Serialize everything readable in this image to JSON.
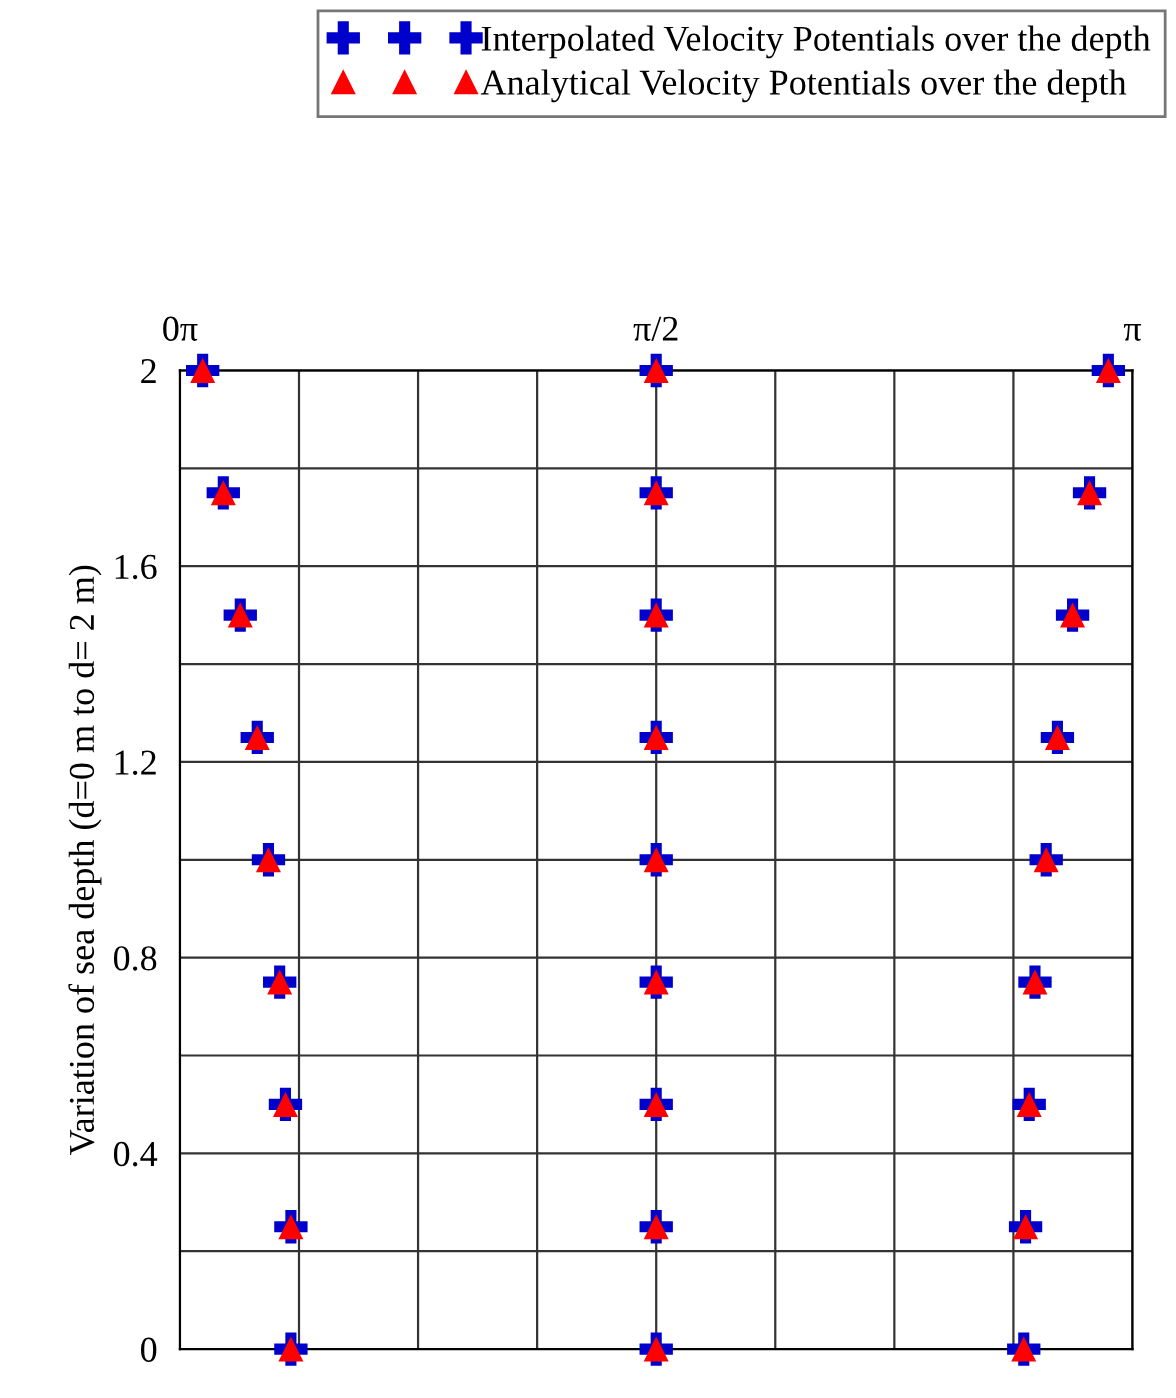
{
  "chart_data": {
    "type": "scatter",
    "ylabel": "Variation of sea depth (d=0 m to d= 2 m)",
    "xlim": [
      0,
      3.1416
    ],
    "xticks": [
      {
        "value": 0,
        "label": "0π"
      },
      {
        "value": 0.3927,
        "label": null
      },
      {
        "value": 0.7854,
        "label": null
      },
      {
        "value": 1.1781,
        "label": null
      },
      {
        "value": 1.5708,
        "label": "π/2"
      },
      {
        "value": 1.9635,
        "label": null
      },
      {
        "value": 2.3562,
        "label": null
      },
      {
        "value": 2.7489,
        "label": null
      },
      {
        "value": 3.1416,
        "label": "π"
      }
    ],
    "ylim": [
      0,
      2
    ],
    "yticks": [
      0,
      {
        "value": 0.2,
        "label": null
      },
      0.4,
      {
        "value": 0.6,
        "label": null
      },
      0.8,
      {
        "value": 1.0,
        "label": null
      },
      1.2,
      {
        "value": 1.4,
        "label": null
      },
      1.6,
      {
        "value": 1.8,
        "label": null
      },
      2
    ],
    "grid": true,
    "legend": "top right",
    "series": [
      {
        "name": "Interpolated Velocity Potentials over the depth",
        "color": "#0000cc",
        "marker": "cross",
        "x": [
          0.075,
          0.143,
          0.199,
          0.255,
          0.292,
          0.329,
          0.348,
          0.366,
          0.366,
          1.5708,
          1.5708,
          1.5708,
          1.5708,
          1.5708,
          1.5708,
          1.5708,
          1.5708,
          1.5708,
          3.062,
          3.0,
          2.944,
          2.894,
          2.857,
          2.82,
          2.801,
          2.789,
          2.783
        ],
        "values": [
          2,
          1.75,
          1.5,
          1.25,
          1.0,
          0.75,
          0.5,
          0.25,
          0,
          2,
          1.75,
          1.5,
          1.25,
          1.0,
          0.75,
          0.5,
          0.25,
          0,
          2,
          1.75,
          1.5,
          1.25,
          1.0,
          0.75,
          0.5,
          0.25,
          0
        ]
      },
      {
        "name": "Analytical Velocity Potentials over the depth",
        "color": "#ff0000",
        "marker": "triangle",
        "x": [
          0.075,
          0.143,
          0.199,
          0.255,
          0.292,
          0.329,
          0.348,
          0.366,
          0.366,
          1.5708,
          1.5708,
          1.5708,
          1.5708,
          1.5708,
          1.5708,
          1.5708,
          1.5708,
          1.5708,
          3.062,
          3.0,
          2.944,
          2.894,
          2.857,
          2.82,
          2.801,
          2.789,
          2.783
        ],
        "values": [
          2,
          1.75,
          1.5,
          1.25,
          1.0,
          0.75,
          0.5,
          0.25,
          0,
          2,
          1.75,
          1.5,
          1.25,
          1.0,
          0.75,
          0.5,
          0.25,
          0,
          2,
          1.75,
          1.5,
          1.25,
          1.0,
          0.75,
          0.5,
          0.25,
          0
        ]
      }
    ]
  }
}
